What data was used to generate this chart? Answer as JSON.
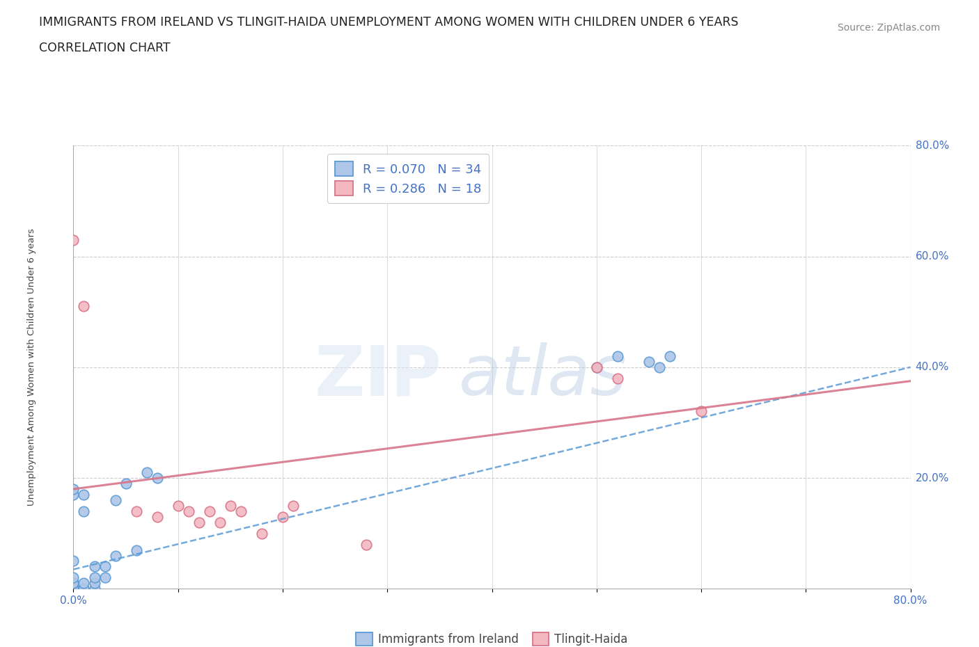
{
  "title_line1": "IMMIGRANTS FROM IRELAND VS TLINGIT-HAIDA UNEMPLOYMENT AMONG WOMEN WITH CHILDREN UNDER 6 YEARS",
  "title_line2": "CORRELATION CHART",
  "source_text": "Source: ZipAtlas.com",
  "ylabel": "Unemployment Among Women with Children Under 6 years",
  "xlim": [
    0.0,
    0.8
  ],
  "ylim": [
    0.0,
    0.8
  ],
  "ireland_color": "#aec6e8",
  "ireland_edge_color": "#5b9bd5",
  "tlingit_color": "#f4b8c1",
  "tlingit_edge_color": "#d9748a",
  "ireland_R": 0.07,
  "ireland_N": 34,
  "tlingit_R": 0.286,
  "tlingit_N": 18,
  "stat_color": "#4472c4",
  "background_color": "#ffffff",
  "grid_color": "#cccccc",
  "ireland_line_x": [
    0.0,
    0.8
  ],
  "ireland_line_y": [
    0.035,
    0.4
  ],
  "tlingit_line_x": [
    0.0,
    0.8
  ],
  "tlingit_line_y": [
    0.18,
    0.375
  ],
  "ireland_x": [
    0.0,
    0.0,
    0.0,
    0.0,
    0.0,
    0.0,
    0.0,
    0.0,
    0.0,
    0.0,
    0.0,
    0.0,
    0.01,
    0.01,
    0.01,
    0.01,
    0.01,
    0.02,
    0.02,
    0.02,
    0.02,
    0.03,
    0.03,
    0.04,
    0.04,
    0.05,
    0.06,
    0.07,
    0.08,
    0.5,
    0.52,
    0.55,
    0.56,
    0.57
  ],
  "ireland_y": [
    0.0,
    0.0,
    0.0,
    0.0,
    0.0,
    0.0,
    0.01,
    0.01,
    0.02,
    0.05,
    0.17,
    0.18,
    0.0,
    0.0,
    0.01,
    0.14,
    0.17,
    0.0,
    0.01,
    0.02,
    0.04,
    0.02,
    0.04,
    0.06,
    0.16,
    0.19,
    0.07,
    0.21,
    0.2,
    0.4,
    0.42,
    0.41,
    0.4,
    0.42
  ],
  "tlingit_x": [
    0.0,
    0.01,
    0.06,
    0.08,
    0.1,
    0.11,
    0.12,
    0.13,
    0.14,
    0.15,
    0.16,
    0.18,
    0.2,
    0.21,
    0.28,
    0.5,
    0.52,
    0.6
  ],
  "tlingit_y": [
    0.63,
    0.51,
    0.14,
    0.13,
    0.15,
    0.14,
    0.12,
    0.14,
    0.12,
    0.15,
    0.14,
    0.1,
    0.13,
    0.15,
    0.08,
    0.4,
    0.38,
    0.32
  ]
}
